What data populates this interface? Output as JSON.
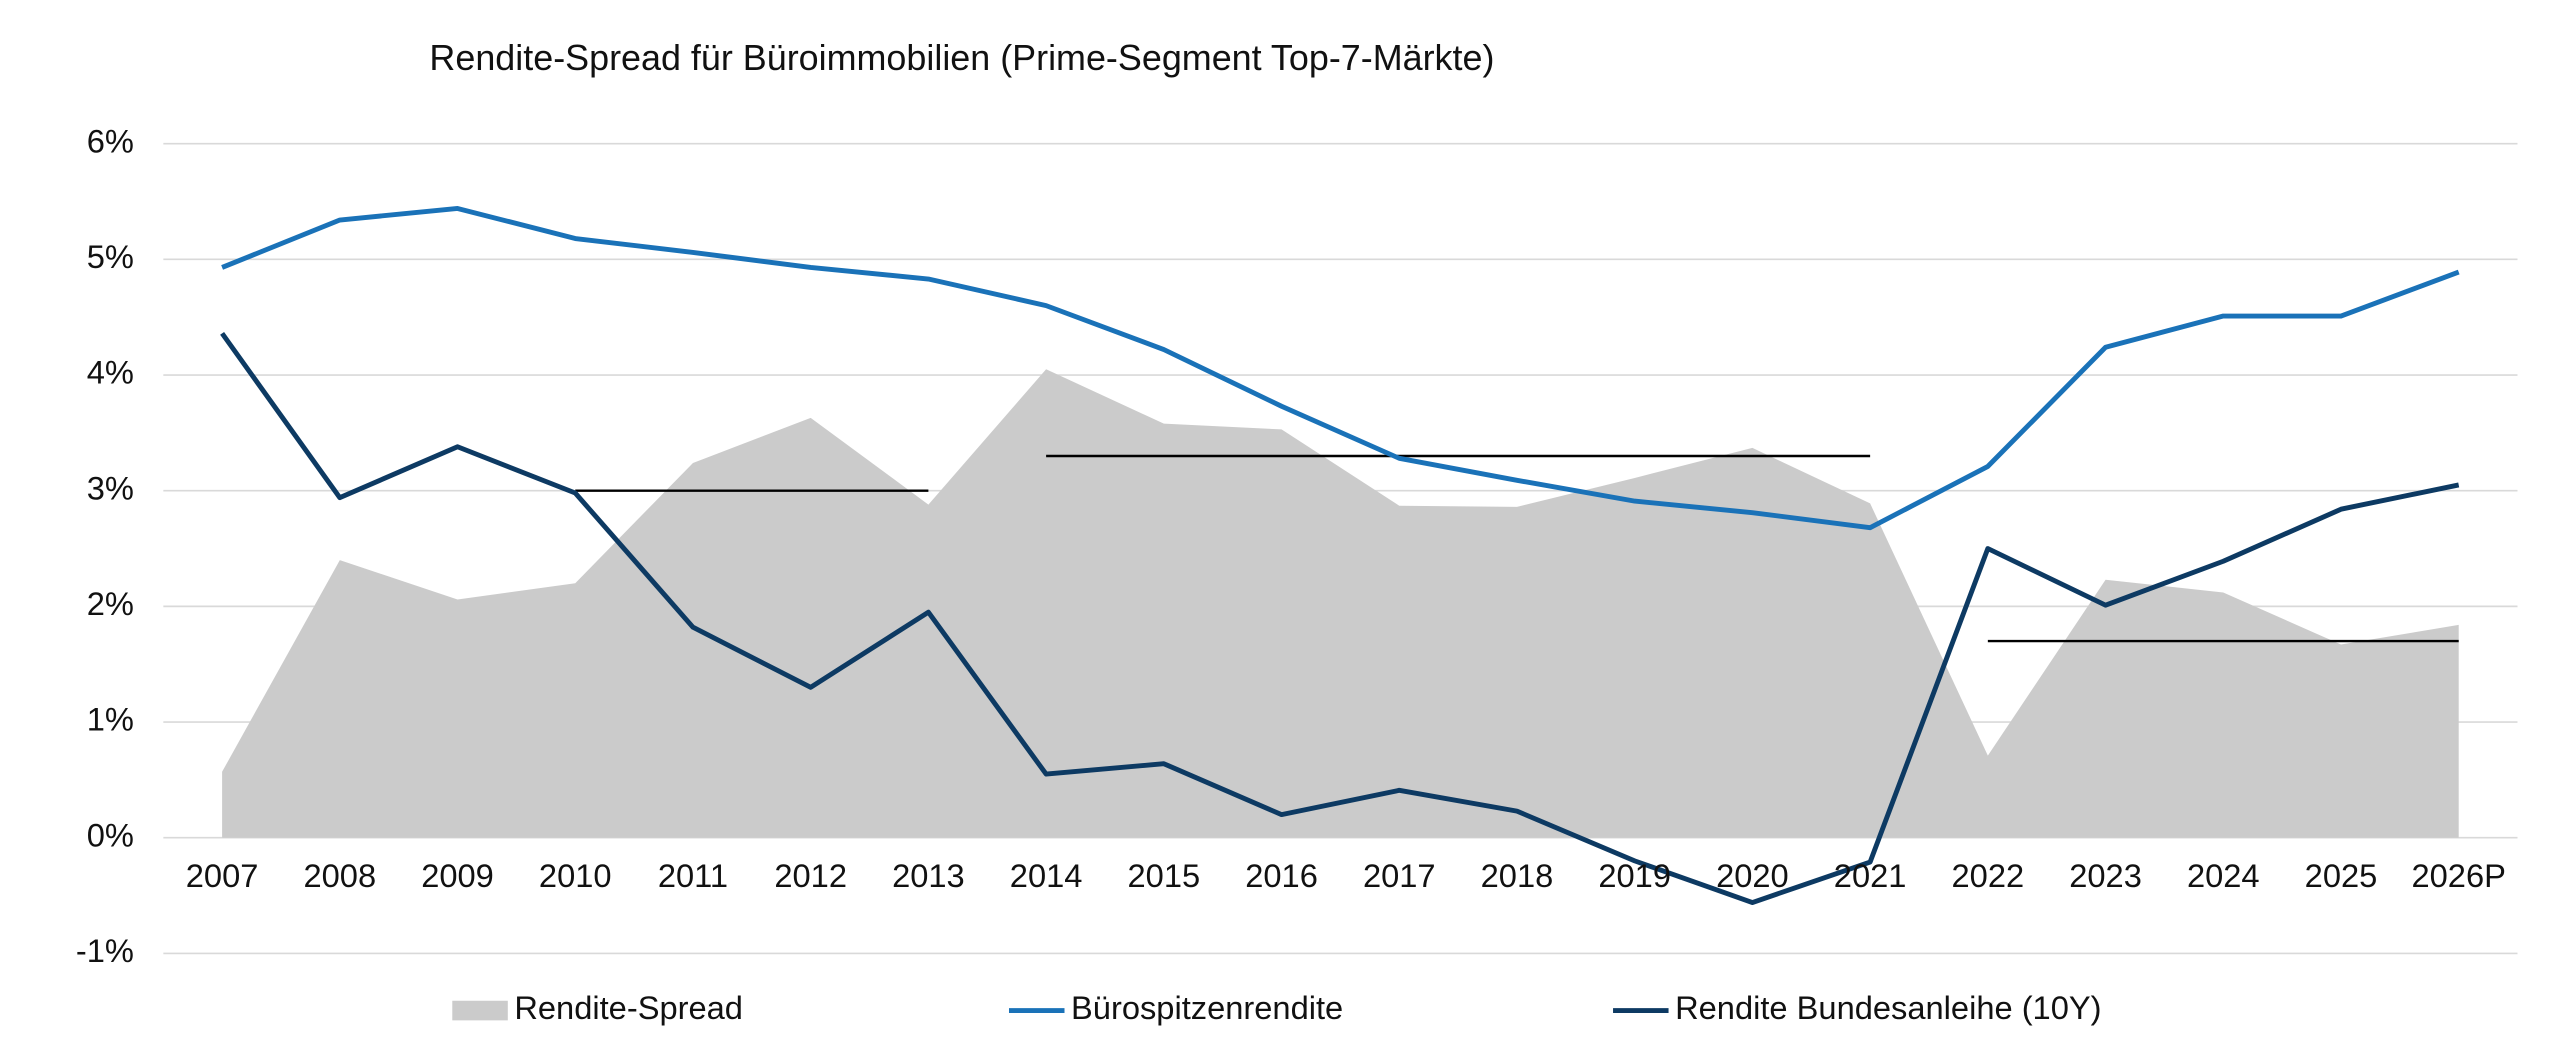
{
  "chart_data": {
    "type": "line",
    "title": "Rendite-Spread für Büroimmobilien (Prime-Segment Top-7-Märkte)",
    "categories": [
      "2007",
      "2008",
      "2009",
      "2010",
      "2011",
      "2012",
      "2013",
      "2014",
      "2015",
      "2016",
      "2017",
      "2018",
      "2019",
      "2020",
      "2021",
      "2022",
      "2023",
      "2024",
      "2025",
      "2026P"
    ],
    "series": [
      {
        "name": "Rendite-Spread",
        "kind": "area",
        "color": "#cbcbcb",
        "values": [
          0.57,
          2.4,
          2.06,
          2.2,
          3.24,
          3.63,
          2.88,
          4.05,
          3.58,
          3.53,
          2.87,
          2.86,
          3.11,
          3.37,
          2.89,
          0.71,
          2.23,
          2.12,
          1.67,
          1.84
        ]
      },
      {
        "name": "Bürospitzenrendite",
        "kind": "line",
        "color": "#1a72b8",
        "values": [
          4.93,
          5.34,
          5.44,
          5.18,
          5.06,
          4.93,
          4.83,
          4.6,
          4.22,
          3.73,
          3.28,
          3.09,
          2.91,
          2.81,
          2.68,
          3.21,
          4.24,
          4.51,
          4.51,
          4.89
        ]
      },
      {
        "name": "Rendite Bundesanleihe (10Y)",
        "kind": "line",
        "color": "#0d3a63",
        "values": [
          4.36,
          2.94,
          3.38,
          2.98,
          1.82,
          1.3,
          1.95,
          0.55,
          0.64,
          0.2,
          0.41,
          0.23,
          -0.2,
          -0.56,
          -0.21,
          2.5,
          2.01,
          2.39,
          2.84,
          3.05
        ]
      }
    ],
    "averages": [
      {
        "start": "2010",
        "end": "2013",
        "value": 3.0
      },
      {
        "start": "2014",
        "end": "2021",
        "value": 3.3
      },
      {
        "start": "2022",
        "end": "2026P",
        "value": 1.7
      }
    ],
    "ylim": [
      -1,
      6
    ],
    "yticks": [
      {
        "value": -1,
        "label": "-1%"
      },
      {
        "value": 0,
        "label": "0%"
      },
      {
        "value": 1,
        "label": "1%"
      },
      {
        "value": 2,
        "label": "2%"
      },
      {
        "value": 3,
        "label": "3%"
      },
      {
        "value": 4,
        "label": "4%"
      },
      {
        "value": 5,
        "label": "5%"
      },
      {
        "value": 6,
        "label": "6%"
      }
    ],
    "grid": true,
    "legend": "bottom"
  }
}
